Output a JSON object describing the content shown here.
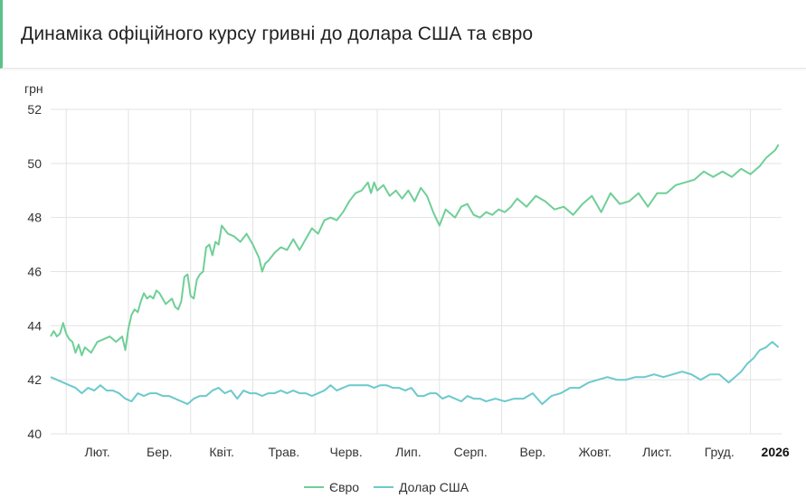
{
  "title": "Динаміка офіційного курсу гривні до долара США та євро",
  "colors": {
    "eur": "#6fcf97",
    "usd": "#6cc9cc",
    "grid": "#e3e3e3",
    "accent": "#5dc08a"
  },
  "chart_data": {
    "type": "line",
    "ylabel": "грн",
    "ylim": [
      40,
      52
    ],
    "yticks": [
      40,
      42,
      44,
      46,
      48,
      50,
      52
    ],
    "xlim": [
      0,
      23.5
    ],
    "xticks": [
      {
        "label": "Лют.",
        "x": 1.5,
        "bold": false
      },
      {
        "label": "Бер.",
        "x": 3.5,
        "bold": false
      },
      {
        "label": "Квіт.",
        "x": 5.5,
        "bold": false
      },
      {
        "label": "Трав.",
        "x": 7.5,
        "bold": false
      },
      {
        "label": "Черв.",
        "x": 9.5,
        "bold": false
      },
      {
        "label": "Лип.",
        "x": 11.5,
        "bold": false
      },
      {
        "label": "Серп.",
        "x": 13.5,
        "bold": false
      },
      {
        "label": "Вер.",
        "x": 15.5,
        "bold": false
      },
      {
        "label": "Жовт.",
        "x": 17.5,
        "bold": false
      },
      {
        "label": "Лист.",
        "x": 19.5,
        "bold": false
      },
      {
        "label": "Груд.",
        "x": 21.5,
        "bold": false
      },
      {
        "label": "2026",
        "x": 23.3,
        "bold": true
      }
    ],
    "vgrid": [
      0.5,
      2.5,
      4.5,
      6.5,
      8.5,
      10.5,
      12.5,
      14.5,
      16.5,
      18.5,
      20.5,
      22.5
    ],
    "legend": {
      "position": "bottom-center"
    },
    "series": [
      {
        "name": "Євро",
        "color": "#6fcf97",
        "x": [
          0,
          0.1,
          0.2,
          0.3,
          0.4,
          0.5,
          0.6,
          0.7,
          0.8,
          0.9,
          1.0,
          1.1,
          1.3,
          1.5,
          1.7,
          1.9,
          2.1,
          2.3,
          2.4,
          2.5,
          2.6,
          2.7,
          2.8,
          2.9,
          3.0,
          3.1,
          3.2,
          3.3,
          3.4,
          3.5,
          3.7,
          3.9,
          4.0,
          4.1,
          4.2,
          4.3,
          4.4,
          4.5,
          4.6,
          4.7,
          4.8,
          4.9,
          5.0,
          5.1,
          5.2,
          5.3,
          5.4,
          5.5,
          5.7,
          5.9,
          6.1,
          6.3,
          6.5,
          6.7,
          6.8,
          6.9,
          7.0,
          7.2,
          7.4,
          7.6,
          7.8,
          8.0,
          8.2,
          8.4,
          8.6,
          8.8,
          9.0,
          9.2,
          9.4,
          9.6,
          9.8,
          10.0,
          10.2,
          10.3,
          10.4,
          10.5,
          10.7,
          10.9,
          11.1,
          11.3,
          11.5,
          11.7,
          11.9,
          12.1,
          12.3,
          12.5,
          12.7,
          12.8,
          13.0,
          13.2,
          13.4,
          13.6,
          13.8,
          14.0,
          14.2,
          14.4,
          14.6,
          14.8,
          15.0,
          15.3,
          15.6,
          15.9,
          16.2,
          16.5,
          16.8,
          17.1,
          17.4,
          17.7,
          18.0,
          18.3,
          18.6,
          18.9,
          19.2,
          19.5,
          19.8,
          20.1,
          20.4,
          20.7,
          21.0,
          21.3,
          21.6,
          21.9,
          22.2,
          22.5,
          22.8,
          23.0,
          23.2,
          23.3,
          23.4
        ],
        "values": [
          43.6,
          43.8,
          43.6,
          43.7,
          44.1,
          43.7,
          43.5,
          43.4,
          43.0,
          43.3,
          42.9,
          43.2,
          43.0,
          43.4,
          43.5,
          43.6,
          43.4,
          43.6,
          43.1,
          43.9,
          44.4,
          44.6,
          44.5,
          44.9,
          45.2,
          45.0,
          45.1,
          45.0,
          45.3,
          45.2,
          44.8,
          45.0,
          44.7,
          44.6,
          44.9,
          45.8,
          45.9,
          45.1,
          45.0,
          45.7,
          45.9,
          46.0,
          46.9,
          47.0,
          46.6,
          47.1,
          47.0,
          47.7,
          47.4,
          47.3,
          47.1,
          47.4,
          47.0,
          46.5,
          46.0,
          46.3,
          46.4,
          46.7,
          46.9,
          46.8,
          47.2,
          46.8,
          47.2,
          47.6,
          47.4,
          47.9,
          48.0,
          47.9,
          48.2,
          48.6,
          48.9,
          49.0,
          49.3,
          48.9,
          49.3,
          49.0,
          49.2,
          48.8,
          49.0,
          48.7,
          49.0,
          48.6,
          49.1,
          48.8,
          48.2,
          47.7,
          48.3,
          48.2,
          48.0,
          48.4,
          48.5,
          48.1,
          48.0,
          48.2,
          48.1,
          48.3,
          48.2,
          48.4,
          48.7,
          48.4,
          48.8,
          48.6,
          48.3,
          48.4,
          48.1,
          48.5,
          48.8,
          48.2,
          48.9,
          48.5,
          48.6,
          48.9,
          48.4,
          48.9,
          48.9,
          49.2,
          49.3,
          49.4,
          49.7,
          49.5,
          49.7,
          49.5,
          49.8,
          49.6,
          49.9,
          50.2,
          50.4,
          50.5,
          50.7
        ]
      },
      {
        "name": "Долар США",
        "color": "#6cc9cc",
        "x": [
          0,
          0.2,
          0.4,
          0.6,
          0.8,
          1.0,
          1.2,
          1.4,
          1.6,
          1.8,
          2.0,
          2.2,
          2.4,
          2.6,
          2.8,
          3.0,
          3.2,
          3.4,
          3.6,
          3.8,
          4.0,
          4.2,
          4.4,
          4.6,
          4.8,
          5.0,
          5.2,
          5.4,
          5.6,
          5.8,
          6.0,
          6.2,
          6.4,
          6.6,
          6.8,
          7.0,
          7.2,
          7.4,
          7.6,
          7.8,
          8.0,
          8.2,
          8.4,
          8.6,
          8.8,
          9.0,
          9.2,
          9.4,
          9.6,
          9.8,
          10.0,
          10.2,
          10.4,
          10.6,
          10.8,
          11.0,
          11.2,
          11.4,
          11.6,
          11.8,
          12.0,
          12.2,
          12.4,
          12.6,
          12.8,
          13.0,
          13.2,
          13.4,
          13.6,
          13.8,
          14.0,
          14.3,
          14.6,
          14.9,
          15.2,
          15.5,
          15.8,
          16.1,
          16.4,
          16.7,
          17.0,
          17.3,
          17.6,
          17.9,
          18.2,
          18.5,
          18.8,
          19.1,
          19.4,
          19.7,
          20.0,
          20.3,
          20.6,
          20.9,
          21.2,
          21.5,
          21.8,
          22.0,
          22.2,
          22.4,
          22.6,
          22.8,
          23.0,
          23.1,
          23.2,
          23.3,
          23.4
        ],
        "values": [
          42.1,
          42.0,
          41.9,
          41.8,
          41.7,
          41.5,
          41.7,
          41.6,
          41.8,
          41.6,
          41.6,
          41.5,
          41.3,
          41.2,
          41.5,
          41.4,
          41.5,
          41.5,
          41.4,
          41.4,
          41.3,
          41.2,
          41.1,
          41.3,
          41.4,
          41.4,
          41.6,
          41.7,
          41.5,
          41.6,
          41.3,
          41.6,
          41.5,
          41.5,
          41.4,
          41.5,
          41.5,
          41.6,
          41.5,
          41.6,
          41.5,
          41.5,
          41.4,
          41.5,
          41.6,
          41.8,
          41.6,
          41.7,
          41.8,
          41.8,
          41.8,
          41.8,
          41.7,
          41.8,
          41.8,
          41.7,
          41.7,
          41.6,
          41.7,
          41.4,
          41.4,
          41.5,
          41.5,
          41.3,
          41.4,
          41.3,
          41.2,
          41.4,
          41.3,
          41.3,
          41.2,
          41.3,
          41.2,
          41.3,
          41.3,
          41.5,
          41.1,
          41.4,
          41.5,
          41.7,
          41.7,
          41.9,
          42.0,
          42.1,
          42.0,
          42.0,
          42.1,
          42.1,
          42.2,
          42.1,
          42.2,
          42.3,
          42.2,
          42.0,
          42.2,
          42.2,
          41.9,
          42.1,
          42.3,
          42.6,
          42.8,
          43.1,
          43.2,
          43.3,
          43.4,
          43.3,
          43.2
        ]
      }
    ]
  }
}
